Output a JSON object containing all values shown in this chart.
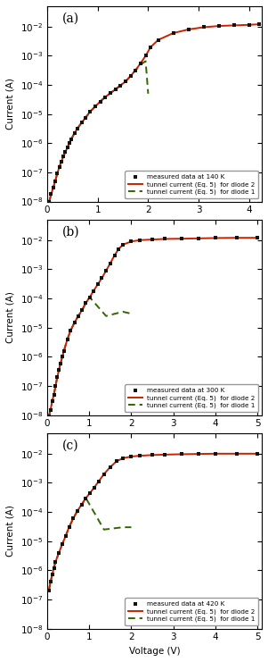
{
  "panels": [
    {
      "label": "a",
      "temp": "140 K",
      "xlim": [
        0,
        4.25
      ],
      "xticks": [
        0,
        1,
        2,
        3,
        4
      ],
      "measured_v": [
        0.04,
        0.08,
        0.12,
        0.16,
        0.2,
        0.24,
        0.28,
        0.32,
        0.36,
        0.4,
        0.44,
        0.48,
        0.54,
        0.6,
        0.68,
        0.76,
        0.85,
        0.95,
        1.05,
        1.15,
        1.25,
        1.35,
        1.45,
        1.55,
        1.65,
        1.75,
        1.85,
        1.95,
        2.05,
        2.2,
        2.5,
        2.8,
        3.1,
        3.4,
        3.7,
        4.0,
        4.2
      ],
      "measured_i": [
        1e-08,
        1.8e-08,
        3e-08,
        5e-08,
        9e-08,
        1.5e-07,
        2.3e-07,
        3.5e-07,
        5e-07,
        7e-07,
        1e-06,
        1.4e-06,
        2.2e-06,
        3.2e-06,
        5e-06,
        7.5e-06,
        1.2e-05,
        1.8e-05,
        2.7e-05,
        3.8e-05,
        5.2e-05,
        7e-05,
        9.5e-05,
        0.00013,
        0.0002,
        0.00032,
        0.00055,
        0.001,
        0.002,
        0.0035,
        0.006,
        0.008,
        0.0095,
        0.0105,
        0.011,
        0.0115,
        0.012
      ],
      "red_v": [
        0.04,
        0.08,
        0.12,
        0.16,
        0.2,
        0.24,
        0.28,
        0.32,
        0.36,
        0.4,
        0.44,
        0.48,
        0.54,
        0.6,
        0.68,
        0.76,
        0.85,
        0.95,
        1.05,
        1.15,
        1.25,
        1.35,
        1.45,
        1.55,
        1.65,
        1.75,
        1.85,
        1.95,
        2.05,
        2.2,
        2.5,
        2.8,
        3.1,
        3.4,
        3.7,
        4.0,
        4.2
      ],
      "red_i": [
        1e-08,
        1.8e-08,
        3e-08,
        5e-08,
        9e-08,
        1.5e-07,
        2.3e-07,
        3.5e-07,
        5e-07,
        7e-07,
        1e-06,
        1.4e-06,
        2.2e-06,
        3.2e-06,
        5e-06,
        7.5e-06,
        1.2e-05,
        1.8e-05,
        2.7e-05,
        3.8e-05,
        5.2e-05,
        7e-05,
        9.5e-05,
        0.00013,
        0.0002,
        0.00032,
        0.00055,
        0.001,
        0.002,
        0.0035,
        0.006,
        0.008,
        0.0095,
        0.0105,
        0.011,
        0.0115,
        0.012
      ],
      "green_v": [
        0.04,
        0.08,
        0.12,
        0.16,
        0.2,
        0.24,
        0.28,
        0.32,
        0.36,
        0.4,
        0.44,
        0.48,
        0.54,
        0.6,
        0.68,
        0.76,
        0.85,
        0.95,
        1.05,
        1.15,
        1.25,
        1.35,
        1.45,
        1.55,
        1.65,
        1.75,
        1.85,
        1.95,
        2.0
      ],
      "green_i": [
        1e-08,
        1.8e-08,
        3e-08,
        5e-08,
        9e-08,
        1.5e-07,
        2.3e-07,
        3.5e-07,
        5e-07,
        7e-07,
        1e-06,
        1.4e-06,
        2.2e-06,
        3.2e-06,
        5e-06,
        7.5e-06,
        1.2e-05,
        1.8e-05,
        2.7e-05,
        3.8e-05,
        5.2e-05,
        7e-05,
        9.5e-05,
        0.00013,
        0.0002,
        0.00032,
        0.0005,
        0.00065,
        5e-05
      ]
    },
    {
      "label": "b",
      "temp": "300 K",
      "xlim": [
        0,
        5.1
      ],
      "xticks": [
        0,
        1,
        2,
        3,
        4,
        5
      ],
      "measured_v": [
        0.04,
        0.08,
        0.12,
        0.16,
        0.2,
        0.24,
        0.28,
        0.32,
        0.36,
        0.4,
        0.48,
        0.56,
        0.65,
        0.74,
        0.83,
        0.92,
        1.01,
        1.1,
        1.2,
        1.3,
        1.4,
        1.5,
        1.6,
        1.7,
        1.8,
        2.0,
        2.2,
        2.5,
        2.8,
        3.2,
        3.6,
        4.0,
        4.5,
        5.0
      ],
      "measured_i": [
        9e-09,
        1.5e-08,
        3e-08,
        5e-08,
        1e-07,
        2e-07,
        3.5e-07,
        6e-07,
        1e-06,
        1.6e-06,
        4e-06,
        8e-06,
        1.5e-05,
        2.5e-05,
        4e-05,
        7e-05,
        0.00011,
        0.00018,
        0.0003,
        0.0005,
        0.0009,
        0.0016,
        0.003,
        0.005,
        0.007,
        0.009,
        0.01,
        0.0105,
        0.011,
        0.0112,
        0.0115,
        0.0118,
        0.012,
        0.012
      ],
      "red_v": [
        0.04,
        0.08,
        0.12,
        0.16,
        0.2,
        0.24,
        0.28,
        0.32,
        0.36,
        0.4,
        0.48,
        0.56,
        0.65,
        0.74,
        0.83,
        0.92,
        1.01,
        1.1,
        1.2,
        1.3,
        1.4,
        1.5,
        1.6,
        1.7,
        1.8,
        2.0,
        2.2,
        2.5,
        2.8,
        3.2,
        3.6,
        4.0,
        4.5,
        5.0
      ],
      "red_i": [
        9e-09,
        1.5e-08,
        3e-08,
        5e-08,
        1e-07,
        2e-07,
        3.5e-07,
        6e-07,
        1e-06,
        1.6e-06,
        4e-06,
        8e-06,
        1.5e-05,
        2.5e-05,
        4e-05,
        7e-05,
        0.00011,
        0.00018,
        0.0003,
        0.0005,
        0.0009,
        0.0016,
        0.003,
        0.005,
        0.007,
        0.009,
        0.01,
        0.0105,
        0.011,
        0.0112,
        0.0115,
        0.0118,
        0.012,
        0.012
      ],
      "green_v": [
        0.04,
        0.08,
        0.12,
        0.16,
        0.2,
        0.24,
        0.28,
        0.32,
        0.36,
        0.4,
        0.48,
        0.56,
        0.65,
        0.74,
        0.83,
        0.92,
        1.01,
        1.4,
        1.8,
        2.0
      ],
      "green_i": [
        9e-09,
        1.5e-08,
        3e-08,
        5e-08,
        1e-07,
        2e-07,
        3.5e-07,
        6e-07,
        1e-06,
        1.6e-06,
        4e-06,
        8e-06,
        1.5e-05,
        2.5e-05,
        4e-05,
        7e-05,
        0.00011,
        2.5e-05,
        3.5e-05,
        3e-05
      ]
    },
    {
      "label": "c",
      "temp": "420 K",
      "xlim": [
        0,
        5.1
      ],
      "xticks": [
        0,
        1,
        2,
        3,
        4,
        5
      ],
      "measured_v": [
        0.04,
        0.08,
        0.12,
        0.16,
        0.2,
        0.28,
        0.36,
        0.44,
        0.52,
        0.62,
        0.72,
        0.82,
        0.92,
        1.02,
        1.12,
        1.22,
        1.35,
        1.5,
        1.65,
        1.8,
        2.0,
        2.2,
        2.5,
        2.8,
        3.2,
        3.6,
        4.0,
        4.5,
        5.0
      ],
      "measured_i": [
        2e-07,
        4e-07,
        7e-07,
        1.2e-06,
        2e-06,
        4e-06,
        8e-06,
        1.5e-05,
        3e-05,
        6e-05,
        0.00011,
        0.00018,
        0.0003,
        0.00045,
        0.0007,
        0.0011,
        0.002,
        0.0035,
        0.0055,
        0.007,
        0.008,
        0.0085,
        0.009,
        0.0093,
        0.0096,
        0.0098,
        0.01,
        0.01,
        0.01
      ],
      "red_v": [
        0.04,
        0.08,
        0.12,
        0.16,
        0.2,
        0.28,
        0.36,
        0.44,
        0.52,
        0.62,
        0.72,
        0.82,
        0.92,
        1.02,
        1.12,
        1.22,
        1.35,
        1.5,
        1.65,
        1.8,
        2.0,
        2.2,
        2.5,
        2.8,
        3.2,
        3.6,
        4.0,
        4.5,
        5.0
      ],
      "red_i": [
        2e-07,
        4e-07,
        7e-07,
        1.2e-06,
        2e-06,
        4e-06,
        8e-06,
        1.5e-05,
        3e-05,
        6e-05,
        0.00011,
        0.00018,
        0.0003,
        0.00045,
        0.0007,
        0.0011,
        0.002,
        0.0035,
        0.0055,
        0.007,
        0.008,
        0.0085,
        0.009,
        0.0093,
        0.0096,
        0.0098,
        0.01,
        0.01,
        0.01
      ],
      "green_v": [
        0.04,
        0.08,
        0.12,
        0.16,
        0.2,
        0.28,
        0.36,
        0.44,
        0.52,
        0.62,
        0.72,
        0.82,
        0.92,
        1.35,
        1.8,
        2.0
      ],
      "green_i": [
        2e-07,
        4e-07,
        7e-07,
        1.2e-06,
        2e-06,
        4e-06,
        8e-06,
        1.5e-05,
        3e-05,
        6e-05,
        0.00011,
        0.00018,
        0.0003,
        2.5e-05,
        3e-05,
        3e-05
      ]
    }
  ],
  "ylim": [
    1e-08,
    0.05
  ],
  "ylabel": "Current (A)",
  "xlabel": "Voltage (V)",
  "legend_measured": "measured data at {temp}",
  "legend_red": "tunnel current (Eq. 5)  for diode 2",
  "legend_green": "tunnel current (Eq. 5)  for diode 1",
  "dot_color": "#111111",
  "red_color": "#cc2200",
  "green_color": "#336600",
  "bg_color": "#ffffff",
  "panel_bg": "#ffffff"
}
